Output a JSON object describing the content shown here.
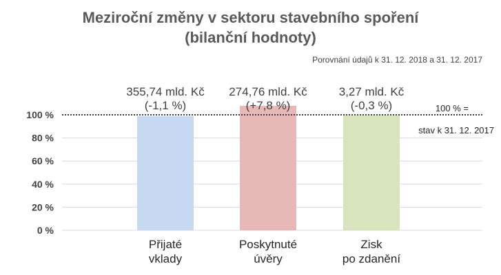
{
  "chart_data": {
    "type": "bar",
    "title_lines": [
      "Meziroční změny v sektoru stavebního spoření",
      "(bilanční hodnoty)"
    ],
    "subtitle": "Porovnání údajů k 31. 12. 2018 a 31. 12. 2017",
    "categories": [
      [
        "Přijaté",
        "vklady"
      ],
      [
        "Poskytnuté",
        "úvěry"
      ],
      [
        "Zisk",
        "po zdanění"
      ]
    ],
    "values": [
      98.9,
      107.8,
      99.7
    ],
    "value_labels": [
      [
        "355,74 mld. Kč",
        "(-1,1 %)"
      ],
      [
        "274,76 mld. Kč",
        "(+7,8 %)"
      ],
      [
        "3,27 mld. Kč",
        "(-0,3 %)"
      ]
    ],
    "colors": [
      "#c6d9f1",
      "#e6b9b8",
      "#d7e4bd"
    ],
    "y_ticks": [
      0,
      20,
      40,
      60,
      80,
      100
    ],
    "y_tick_labels": [
      "0 %",
      "20 %",
      "40 %",
      "60 %",
      "80 %",
      "100 %"
    ],
    "ylim": [
      0,
      100
    ],
    "grid": true,
    "reference_line": {
      "value": 100,
      "label_lines": [
        "100 % =",
        "stav k 31. 12. 2017"
      ]
    }
  }
}
